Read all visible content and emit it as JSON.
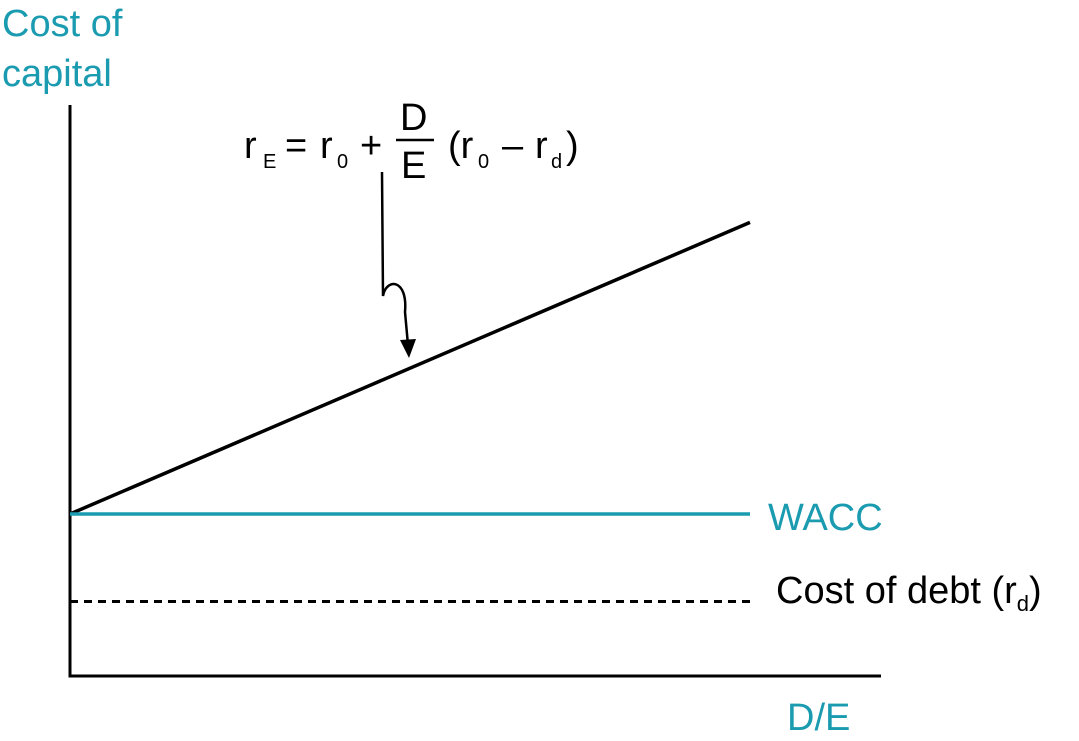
{
  "chart_data": {
    "type": "line",
    "ylabel_line1": "Cost of",
    "ylabel_line2": "capital",
    "xlabel": "D/E",
    "xlim": [
      0,
      1
    ],
    "ylim": [
      0,
      1
    ],
    "grid": false,
    "legend": "none",
    "series": [
      {
        "name": "",
        "style": "solid",
        "color": "#000000",
        "x": [
          0,
          1.0
        ],
        "y": [
          0.5,
          1.4
        ]
      },
      {
        "name": "WACC",
        "style": "solid",
        "color": "#1a9bb0",
        "x": [
          0,
          1.0
        ],
        "y": [
          0.5,
          0.5
        ]
      },
      {
        "name": "Cost of debt (r_d)",
        "style": "dashed",
        "color": "#000000",
        "x": [
          0,
          1.0
        ],
        "y": [
          0.23,
          0.23
        ]
      }
    ],
    "labels": {
      "wacc": "WACC",
      "debt_main": "Cost of debt (r",
      "debt_sub": "d",
      "debt_close": ")"
    },
    "formula": {
      "r": "r",
      "sub_E": "E",
      "eq": "=",
      "r0a": "r",
      "sub0a": "0",
      "plus": "+",
      "num": "D",
      "den": "E",
      "open": "(r",
      "sub0b": "0",
      "minus": "–",
      "rd": "r",
      "sub_d": "d",
      "close": ")"
    }
  },
  "colors": {
    "accent": "#1a9bb0",
    "ink": "#000000"
  }
}
